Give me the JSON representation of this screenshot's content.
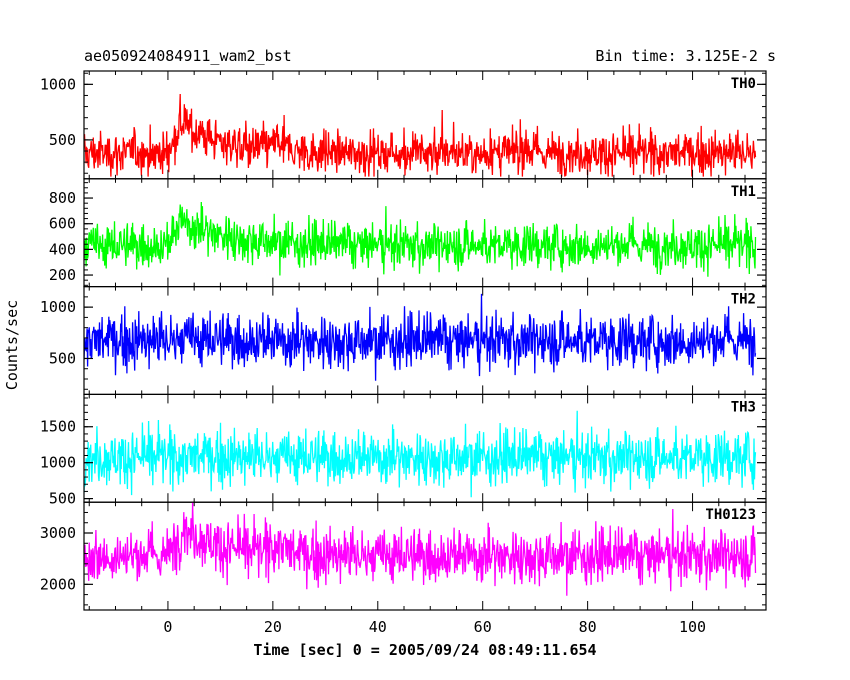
{
  "chart_data": {
    "type": "line",
    "title": "ae050924084911_wam2_bst",
    "subtitle": "Bin time: 3.125E-2 s",
    "xlabel": "Time [sec] 0 = 2005/09/24 08:49:11.654",
    "ylabel": "Counts/sec",
    "xlim": [
      -16,
      114
    ],
    "x_ticks": [
      0,
      20,
      40,
      60,
      80,
      100
    ],
    "x_tick_labels": [
      "0",
      "20",
      "40",
      "60",
      "80",
      "100"
    ],
    "data_x_range": [
      -16,
      112
    ],
    "shared_x": true,
    "grid": false,
    "panels": [
      {
        "name": "TH0",
        "color": "#ff0000",
        "ylim": [
          150,
          1120
        ],
        "y_ticks": [
          500,
          1000
        ],
        "y_tick_labels": [
          "500",
          "1000"
        ],
        "baseline_mean": 380,
        "noise_range": [
          170,
          860
        ],
        "burst": {
          "start": 0,
          "peak_time": 2.5,
          "peak_mean": 650,
          "decay_sec": 8
        },
        "secondary_bumps": [
          {
            "time": 21,
            "mean": 450
          }
        ]
      },
      {
        "name": "TH1",
        "color": "#00ff00",
        "ylim": [
          110,
          950
        ],
        "y_ticks": [
          200,
          400,
          600,
          800
        ],
        "y_tick_labels": [
          "200",
          "400",
          "600",
          "800"
        ],
        "baseline_mean": 430,
        "noise_range": [
          130,
          760
        ],
        "burst": {
          "start": 0,
          "peak_time": 2.5,
          "peak_mean": 620,
          "decay_sec": 9
        },
        "secondary_bumps": []
      },
      {
        "name": "TH2",
        "color": "#0000ff",
        "ylim": [
          150,
          1200
        ],
        "y_ticks": [
          500,
          1000
        ],
        "y_tick_labels": [
          "500",
          "1000"
        ],
        "baseline_mean": 670,
        "noise_range": [
          200,
          1150
        ],
        "burst": {
          "start": 0,
          "peak_time": 3,
          "peak_mean": 700,
          "decay_sec": 5
        },
        "secondary_bumps": []
      },
      {
        "name": "TH3",
        "color": "#00ffff",
        "ylim": [
          450,
          1950
        ],
        "y_ticks": [
          500,
          1000,
          1500
        ],
        "y_tick_labels": [
          "500",
          "1000",
          "1500"
        ],
        "baseline_mean": 1070,
        "noise_range": [
          500,
          1850
        ],
        "burst": {
          "start": 0,
          "peak_time": 3,
          "peak_mean": 1080,
          "decay_sec": 5
        },
        "secondary_bumps": []
      },
      {
        "name": "TH0123",
        "color": "#ff00ff",
        "ylim": [
          1500,
          3600
        ],
        "y_ticks": [
          2000,
          3000
        ],
        "y_tick_labels": [
          "2000",
          "3000"
        ],
        "baseline_mean": 2550,
        "noise_range": [
          1550,
          3450
        ],
        "burst": {
          "start": 0,
          "peak_time": 3,
          "peak_mean": 3100,
          "decay_sec": 7
        },
        "secondary_bumps": [
          {
            "time": 21,
            "mean": 2750
          }
        ]
      }
    ]
  }
}
